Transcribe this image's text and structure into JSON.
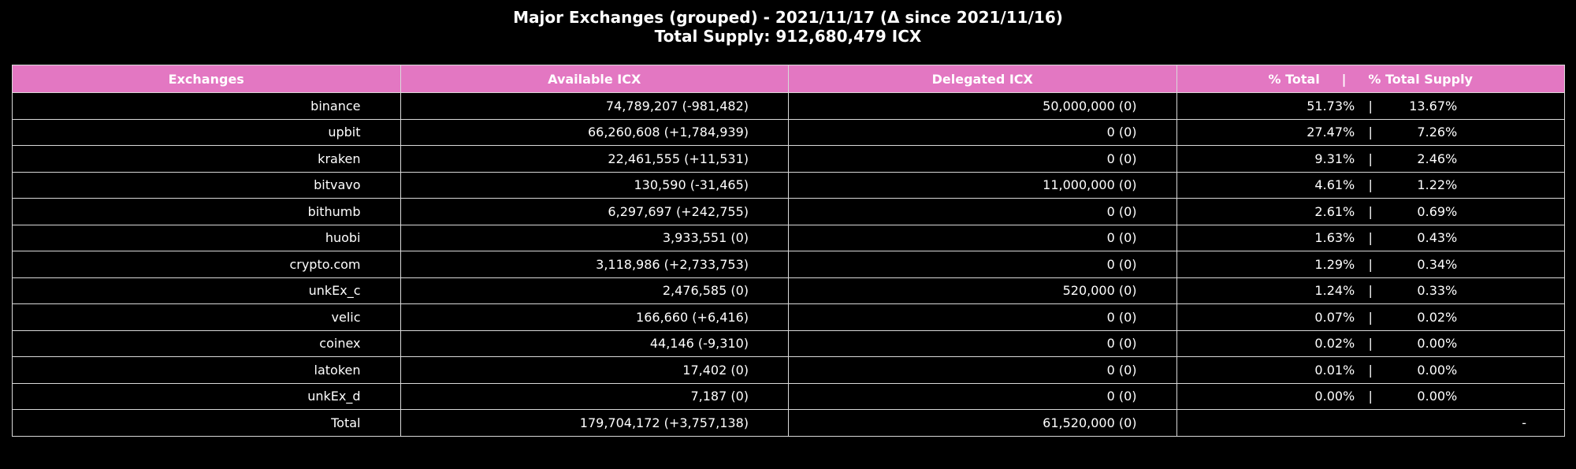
{
  "colors": {
    "background": "#000000",
    "header_bg": "#e377c2",
    "grid": "#d9d9d9",
    "text": "#ffffff"
  },
  "chart_data": {
    "type": "table",
    "title_line1": "Major Exchanges (grouped) - 2021/11/17 (Δ since 2021/11/16)",
    "title_line2": "Total Supply: 912,680,479 ICX",
    "columns": [
      "Exchanges",
      "Available ICX",
      "Delegated ICX",
      "% Total     |     % Total Supply"
    ],
    "rows": [
      {
        "exchange": "binance",
        "available": "74,789,207 (-981,482)",
        "delegated": "50,000,000 (0)",
        "pct_total": "51.73%",
        "pct_supply": "13.67%"
      },
      {
        "exchange": "upbit",
        "available": "66,260,608 (+1,784,939)",
        "delegated": "0 (0)",
        "pct_total": "27.47%",
        "pct_supply": "7.26%"
      },
      {
        "exchange": "kraken",
        "available": "22,461,555 (+11,531)",
        "delegated": "0 (0)",
        "pct_total": "9.31%",
        "pct_supply": "2.46%"
      },
      {
        "exchange": "bitvavo",
        "available": "130,590 (-31,465)",
        "delegated": "11,000,000 (0)",
        "pct_total": "4.61%",
        "pct_supply": "1.22%"
      },
      {
        "exchange": "bithumb",
        "available": "6,297,697 (+242,755)",
        "delegated": "0 (0)",
        "pct_total": "2.61%",
        "pct_supply": "0.69%"
      },
      {
        "exchange": "huobi",
        "available": "3,933,551 (0)",
        "delegated": "0 (0)",
        "pct_total": "1.63%",
        "pct_supply": "0.43%"
      },
      {
        "exchange": "crypto.com",
        "available": "3,118,986 (+2,733,753)",
        "delegated": "0 (0)",
        "pct_total": "1.29%",
        "pct_supply": "0.34%"
      },
      {
        "exchange": "unkEx_c",
        "available": "2,476,585 (0)",
        "delegated": "520,000 (0)",
        "pct_total": "1.24%",
        "pct_supply": "0.33%"
      },
      {
        "exchange": "velic",
        "available": "166,660 (+6,416)",
        "delegated": "0 (0)",
        "pct_total": "0.07%",
        "pct_supply": "0.02%"
      },
      {
        "exchange": "coinex",
        "available": "44,146 (-9,310)",
        "delegated": "0 (0)",
        "pct_total": "0.02%",
        "pct_supply": "0.00%"
      },
      {
        "exchange": "latoken",
        "available": "17,402 (0)",
        "delegated": "0 (0)",
        "pct_total": "0.01%",
        "pct_supply": "0.00%"
      },
      {
        "exchange": "unkEx_d",
        "available": "7,187 (0)",
        "delegated": "0 (0)",
        "pct_total": "0.00%",
        "pct_supply": "0.00%"
      }
    ],
    "separator": "|",
    "total_row": {
      "exchange": "Total",
      "available": "179,704,172 (+3,757,138)",
      "delegated": "61,520,000 (0)",
      "pct": "-"
    }
  }
}
